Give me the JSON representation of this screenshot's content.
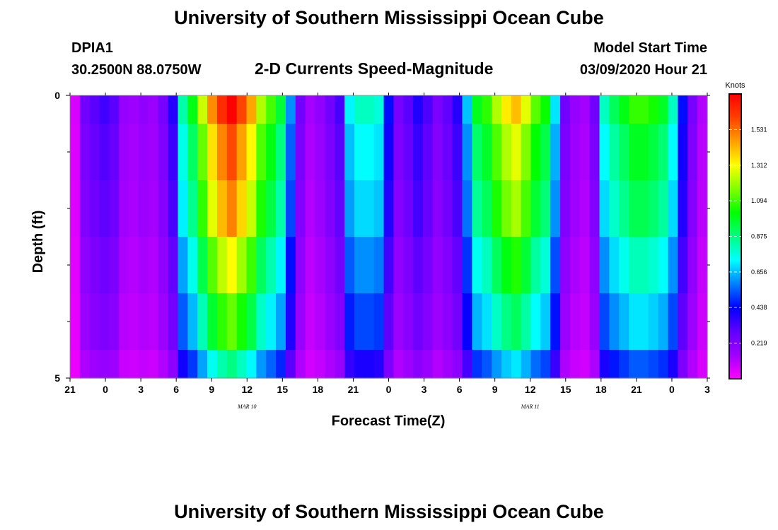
{
  "header": {
    "title": "University of Southern Mississippi Ocean Cube",
    "station": "DPIA1",
    "coords": "30.2500N 88.0750W",
    "subtitle": "2-D Currents Speed-Magnitude",
    "model_label": "Model Start Time",
    "model_time": "03/09/2020 Hour 21"
  },
  "footer": {
    "title": "University of Southern Mississippi Ocean Cube"
  },
  "chart_data": {
    "type": "heatmap",
    "title": "2-D Currents Speed-Magnitude",
    "xlabel": "Forecast Time(Z)",
    "ylabel": "Depth (ft)",
    "x_start_hour": 21,
    "x_step_hours": 1,
    "x_ticks": [
      "21",
      "0",
      "3",
      "6",
      "9",
      "12",
      "15",
      "18",
      "21",
      "0",
      "3",
      "6",
      "9",
      "12",
      "15",
      "18",
      "21",
      "0",
      "3"
    ],
    "date_labels": [
      {
        "text": "MAR 10",
        "hour_offset": 15
      },
      {
        "text": "MAR 11",
        "hour_offset": 39
      }
    ],
    "y_ticks": [
      "0",
      "5"
    ],
    "y_range": [
      0,
      5
    ],
    "depth_layers": [
      0.0,
      0.5,
      1.0,
      1.5,
      2.0,
      2.5,
      3.0,
      3.5,
      4.0,
      4.5
    ],
    "colorbar": {
      "unit": "Knots",
      "min": 0.0,
      "max": 1.75,
      "ticks": [
        "1.531",
        "1.312",
        "1.094",
        "0.875",
        "0.656",
        "0.438",
        "0.219"
      ],
      "tick_values": [
        1.531,
        1.312,
        1.094,
        0.875,
        0.656,
        0.438,
        0.219
      ]
    },
    "surface_speed": [
      0.06,
      0.25,
      0.3,
      0.34,
      0.3,
      0.17,
      0.15,
      0.18,
      0.16,
      0.24,
      0.38,
      0.83,
      1.0,
      1.25,
      1.49,
      1.65,
      1.75,
      1.6,
      1.45,
      1.22,
      1.1,
      0.96,
      0.6,
      0.25,
      0.14,
      0.18,
      0.25,
      0.33,
      0.72,
      0.8,
      0.8,
      0.77,
      0.45,
      0.24,
      0.3,
      0.39,
      0.32,
      0.23,
      0.29,
      0.38,
      0.66,
      0.99,
      1.07,
      1.22,
      1.34,
      1.41,
      1.28,
      1.12,
      1.03,
      0.7,
      0.25,
      0.17,
      0.14,
      0.25,
      0.8,
      0.92,
      1.0,
      1.08,
      1.08,
      1.04,
      0.98,
      0.8,
      0.45,
      0.24,
      0.12
    ],
    "depth_factors": [
      1.0,
      0.91,
      0.91,
      0.86,
      0.86,
      0.75,
      0.75,
      0.65,
      0.65,
      0.5
    ],
    "speed_unit": "knots"
  },
  "colors": {
    "speed_scale": [
      "#ff00ff",
      "#a000ff",
      "#6000ff",
      "#0000ff",
      "#0080ff",
      "#00ffff",
      "#00ff80",
      "#00ff00",
      "#80ff00",
      "#ffff00",
      "#ffa000",
      "#ff4000",
      "#ff0000"
    ]
  }
}
